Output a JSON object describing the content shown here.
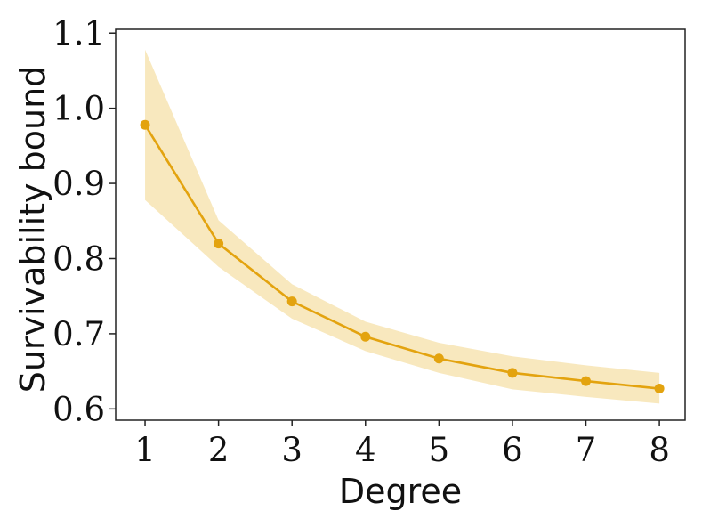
{
  "chart_data": {
    "type": "line",
    "title": "",
    "xlabel": "Degree",
    "ylabel": "Survivability bound",
    "x": [
      1,
      2,
      3,
      4,
      5,
      6,
      7,
      8
    ],
    "xticks": [
      1,
      2,
      3,
      4,
      5,
      6,
      7,
      8
    ],
    "yticks": [
      0.6,
      0.7,
      0.8,
      0.9,
      1.0,
      1.1
    ],
    "ytick_labels": [
      "0.6",
      "0.7",
      "0.8",
      "0.9",
      "1.0",
      "1.1"
    ],
    "xlim": [
      0.6,
      8.35
    ],
    "ylim": [
      0.585,
      1.105
    ],
    "grid": false,
    "legend": "none",
    "series": [
      {
        "values": [
          0.978,
          0.82,
          0.743,
          0.696,
          0.667,
          0.648,
          0.637,
          0.627
        ],
        "lower": [
          0.878,
          0.789,
          0.72,
          0.677,
          0.648,
          0.626,
          0.616,
          0.607
        ],
        "upper": [
          1.078,
          0.851,
          0.766,
          0.716,
          0.688,
          0.67,
          0.658,
          0.648
        ],
        "color": "#e3a30f",
        "band_color": "#f6e0a8"
      }
    ]
  }
}
